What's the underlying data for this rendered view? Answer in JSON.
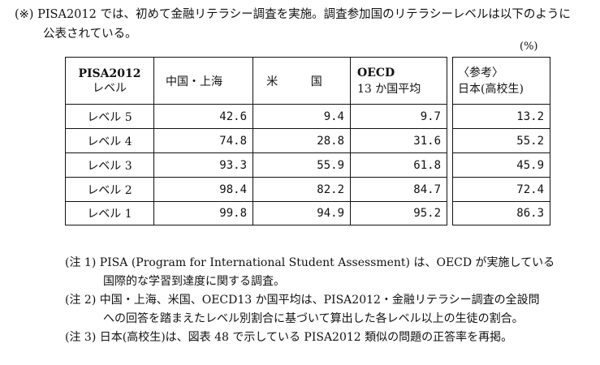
{
  "intro": {
    "line1": "(※) PISA2012 では、初めて金融リテラシー調査を実施。調査参加国のリテラシーレベルは以下のように",
    "line2": "公表されている。"
  },
  "unit": "(%)",
  "table": {
    "header": {
      "level_line1": "PISA2012",
      "level_line2": "レベル",
      "col1": "中国・上海",
      "col2": "米 国",
      "col3_line1": "OECD",
      "col3_line2": "13 か国平均",
      "col4_line1": "〈参考〉",
      "col4_line2": "日本(高校生)"
    },
    "rows": [
      {
        "level": "レベル 5",
        "shanghai": "42.6",
        "us": "9.4",
        "oecd": "9.7",
        "japan": "13.2"
      },
      {
        "level": "レベル 4",
        "shanghai": "74.8",
        "us": "28.8",
        "oecd": "31.6",
        "japan": "55.2"
      },
      {
        "level": "レベル 3",
        "shanghai": "93.3",
        "us": "55.9",
        "oecd": "61.8",
        "japan": "45.9"
      },
      {
        "level": "レベル 2",
        "shanghai": "98.4",
        "us": "82.2",
        "oecd": "84.7",
        "japan": "72.4"
      },
      {
        "level": "レベル 1",
        "shanghai": "99.8",
        "us": "94.9",
        "oecd": "95.2",
        "japan": "86.3"
      }
    ]
  },
  "notes": [
    {
      "line1": "(注 1) PISA (Program for International Student Assessment) は、OECD が実施している",
      "line2": "国際的な学習到達度に関する調査。"
    },
    {
      "line1": "(注 2) 中国・上海、米国、OECD13 か国平均は、PISA2012・金融リテラシー調査の全設問",
      "line2": "への回答を踏まえたレベル別割合に基づいて算出した各レベル以上の生徒の割合。"
    },
    {
      "line1": "(注 3) 日本(高校生)は、図表 48 で示している PISA2012 類似の問題の正答率を再掲。",
      "line2": ""
    }
  ]
}
